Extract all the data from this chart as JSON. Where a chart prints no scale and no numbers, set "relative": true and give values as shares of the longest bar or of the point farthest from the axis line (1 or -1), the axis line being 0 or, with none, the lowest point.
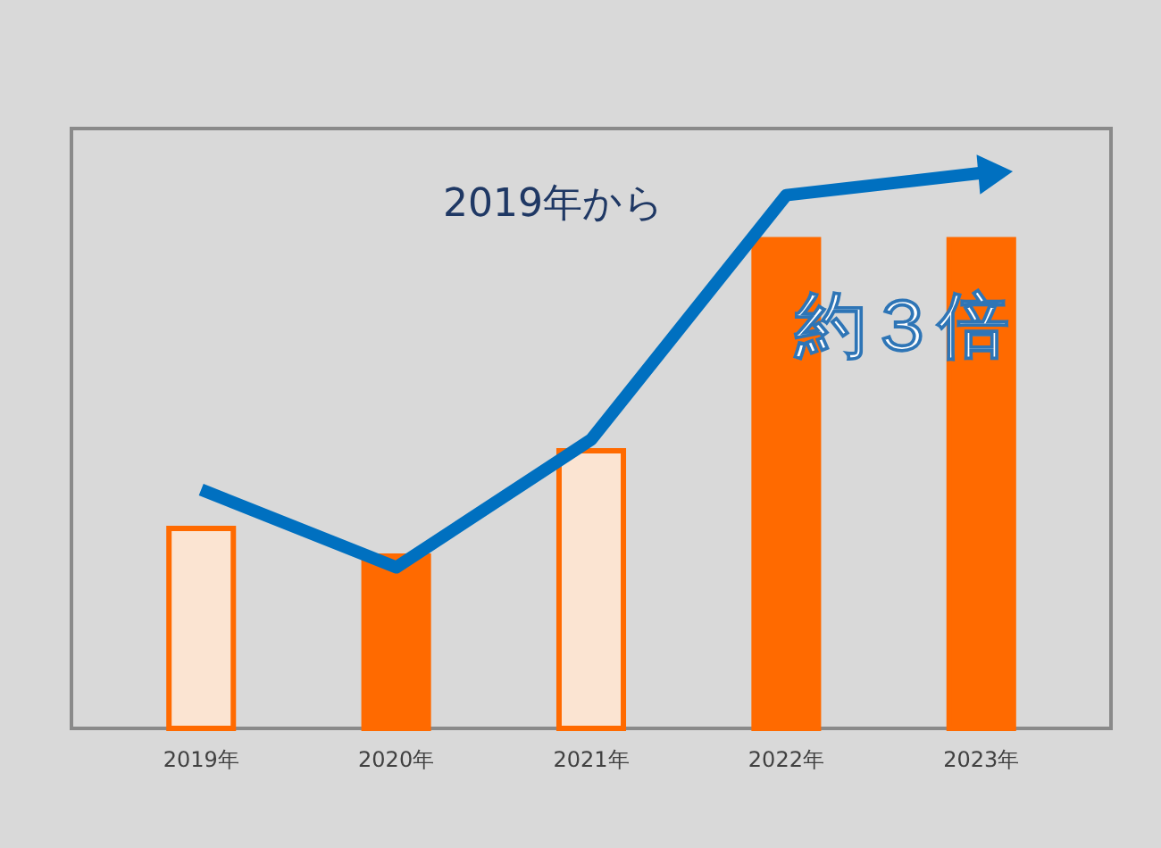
{
  "chart_data": {
    "type": "bar",
    "relative": true,
    "categories": [
      "2019年",
      "2020年",
      "2021年",
      "2022年",
      "2023年"
    ],
    "series": [
      {
        "color": "#ff6a00",
        "colors": [
          "#fbe4d2",
          "#ff6a00",
          "#fbe4d2",
          "#ff6a00",
          "#ff6a00"
        ],
        "values": [
          0.36,
          0.31,
          0.5,
          0.88,
          0.88
        ]
      },
      {
        "type": "line",
        "color": "#0070c0",
        "values": [
          0.43,
          0.29,
          0.52,
          0.96,
          1.0
        ]
      }
    ],
    "annotations": [
      "2019年から",
      "約３倍"
    ]
  }
}
